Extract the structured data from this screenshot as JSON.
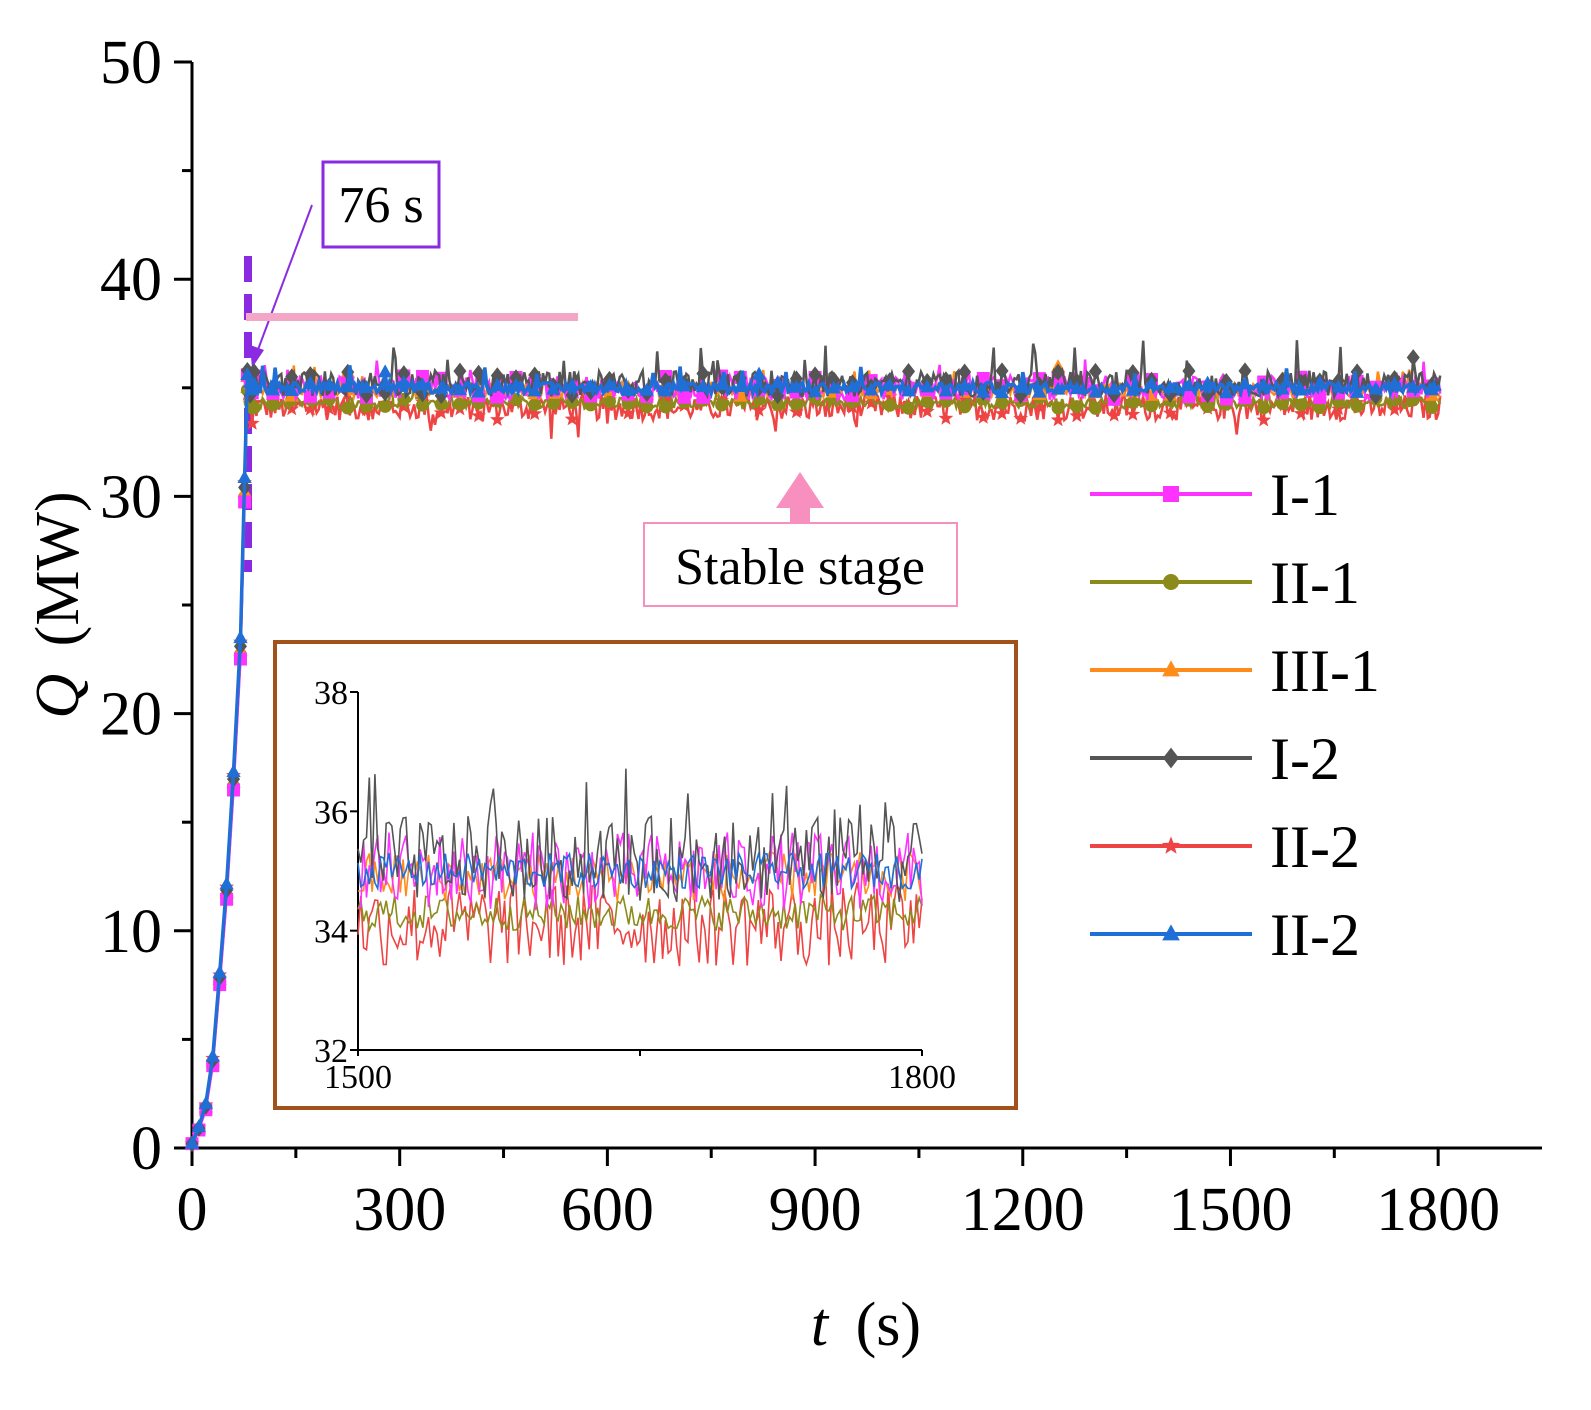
{
  "chart_data": {
    "type": "line",
    "xlabel_var": "t",
    "xlabel_unit": "(s)",
    "ylabel_var": "Q",
    "ylabel_unit": "(MW)",
    "xlim": [
      0,
      1950
    ],
    "ylim": [
      0,
      50
    ],
    "x_ticks": [
      0,
      300,
      600,
      900,
      1200,
      1500,
      1800
    ],
    "y_ticks": [
      0,
      10,
      20,
      30,
      40,
      50
    ],
    "x_tick_labels": [
      "0",
      "300",
      "600",
      "900",
      "1200",
      "1500",
      "1800"
    ],
    "y_tick_labels": [
      "0",
      "10",
      "20",
      "30",
      "40",
      "50"
    ],
    "grid": false,
    "legend_position": "right",
    "ramp": {
      "t": [
        0,
        10,
        20,
        30,
        40,
        50,
        60,
        70,
        76
      ],
      "Q": [
        0.2,
        0.9,
        1.9,
        4.0,
        7.8,
        11.8,
        16.9,
        23.0,
        30.3
      ]
    },
    "series": [
      {
        "name": "I-1",
        "color": "#ff33ff",
        "marker": "square",
        "stable_mean": 35.0,
        "stable_spread": 0.55
      },
      {
        "name": "II-1",
        "color": "#8c8a1a",
        "marker": "circle",
        "stable_mean": 34.3,
        "stable_spread": 0.25
      },
      {
        "name": "III-1",
        "color": "#ff8c1a",
        "marker": "triangle",
        "stable_mean": 34.9,
        "stable_spread": 0.35
      },
      {
        "name": "I-2",
        "color": "#555555",
        "marker": "diamond",
        "stable_mean": 35.2,
        "stable_spread": 0.6
      },
      {
        "name": "II-2",
        "color": "#ee4444",
        "marker": "star",
        "stable_mean": 34.1,
        "stable_spread": 0.6
      },
      {
        "name": "II-2",
        "color": "#1f6fd6",
        "marker": "triangle",
        "stable_mean": 35.0,
        "stable_spread": 0.25
      }
    ],
    "annotations": {
      "onset_label": "76 s",
      "onset_time": 76,
      "stable_label": "Stable stage"
    },
    "inset": {
      "xlim": [
        1500,
        1800
      ],
      "ylim": [
        32,
        38
      ],
      "x_tick_labels": [
        "1500",
        "1800"
      ],
      "y_tick_labels": [
        "32",
        "34",
        "36",
        "38"
      ]
    }
  }
}
